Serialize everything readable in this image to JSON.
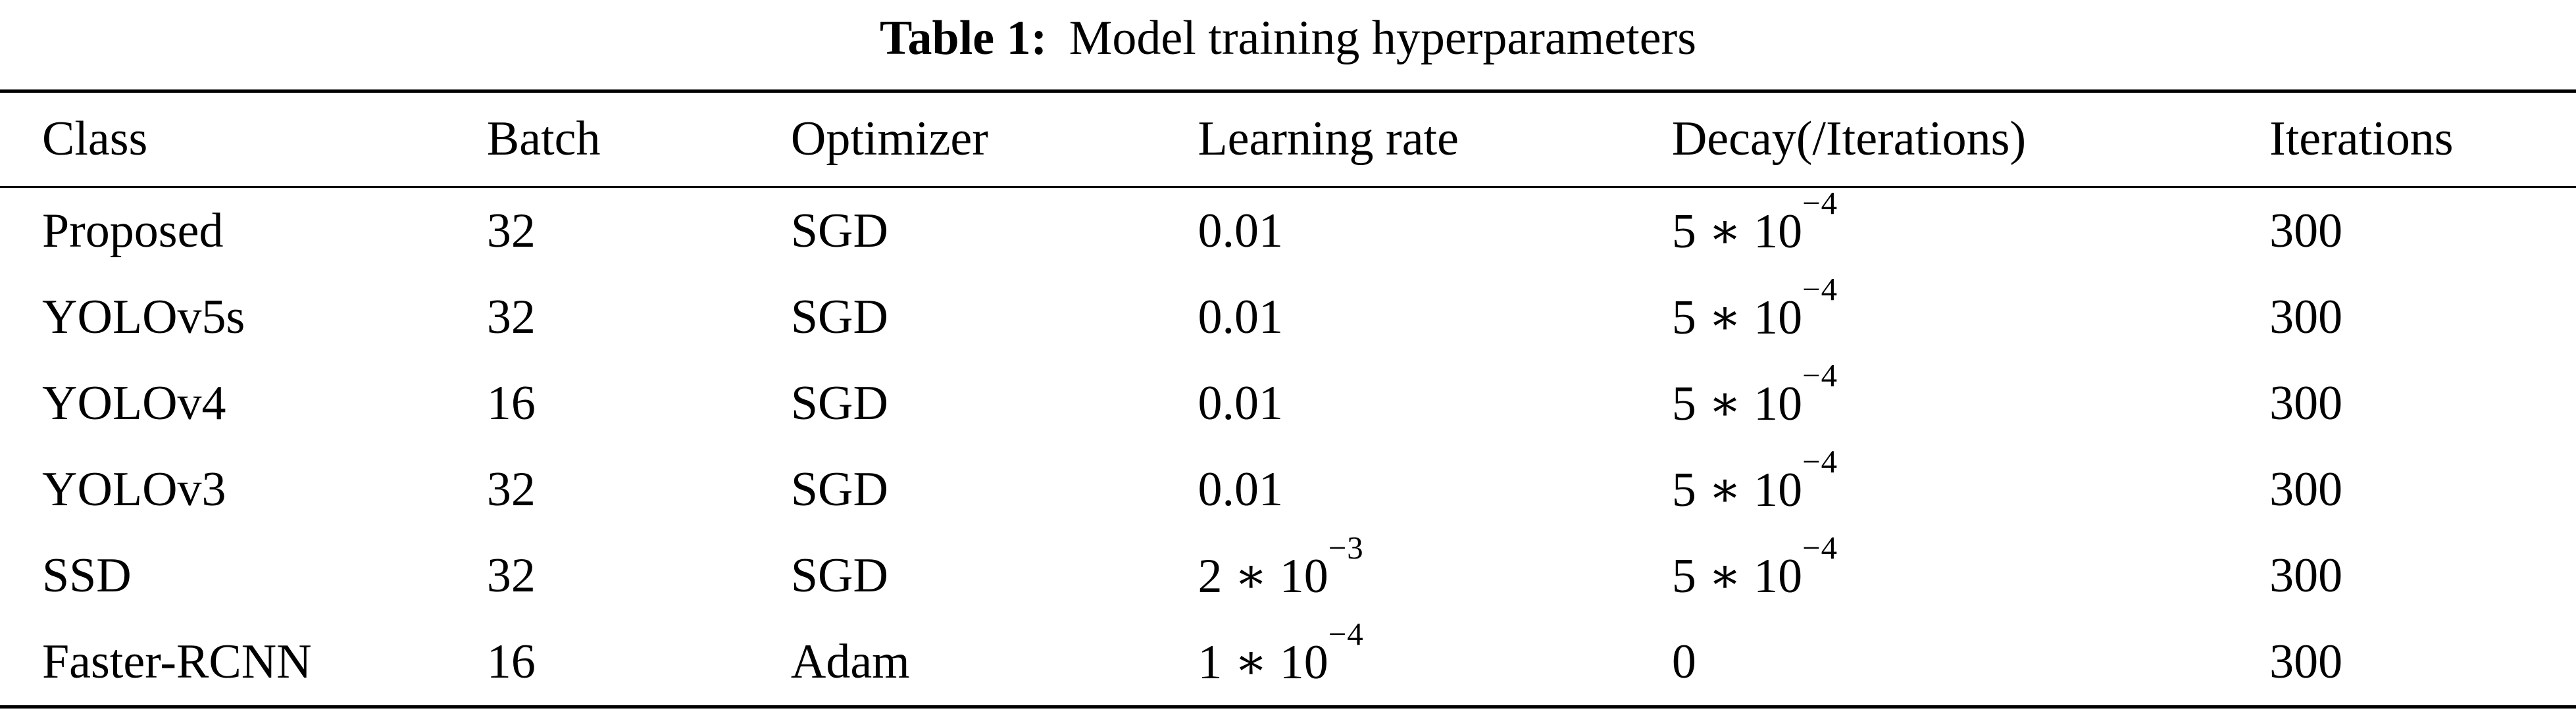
{
  "caption": {
    "label": "Table 1:",
    "text": "Model training hyperparameters"
  },
  "table": {
    "columns": [
      "Class",
      "Batch",
      "Optimizer",
      "Learning rate",
      "Decay(/Iterations)",
      "Iterations"
    ],
    "rows": [
      [
        "Proposed",
        "32",
        "SGD",
        "0.01",
        "5 ∗ 10^{−4}",
        "300"
      ],
      [
        "YOLOv5s",
        "32",
        "SGD",
        "0.01",
        "5 ∗ 10^{−4}",
        "300"
      ],
      [
        "YOLOv4",
        "16",
        "SGD",
        "0.01",
        "5 ∗ 10^{−4}",
        "300"
      ],
      [
        "YOLOv3",
        "32",
        "SGD",
        "0.01",
        "5 ∗ 10^{−4}",
        "300"
      ],
      [
        "SSD",
        "32",
        "SGD",
        "2 ∗ 10^{−3}",
        "5 ∗ 10^{−4}",
        "300"
      ],
      [
        "Faster-RCNN",
        "16",
        "Adam",
        "1 ∗ 10^{−4}",
        "0",
        "300"
      ]
    ]
  },
  "colors": {
    "text": "#000000",
    "background": "#ffffff",
    "rule": "#000000"
  }
}
